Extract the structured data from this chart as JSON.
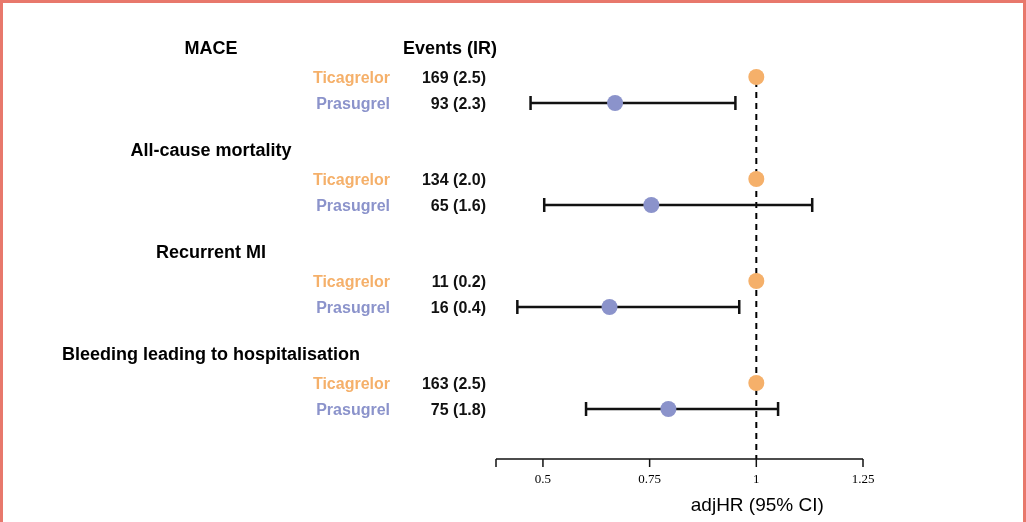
{
  "chart_data": {
    "type": "scatter",
    "orientation": "horizontal",
    "categories": [
      "Ticagrelor",
      "Prasugrel",
      "Ticagrelor",
      "Prasugrel",
      "Ticagrelor",
      "Prasugrel",
      "Ticagrelor",
      "Prasugrel"
    ],
    "values": [
      1,
      0.669,
      1,
      0.754,
      1,
      0.656,
      1,
      0.794
    ],
    "colors": [
      "#f5b06a",
      "#8b93cb",
      "#f5b06a",
      "#8b93cb",
      "#f5b06a",
      "#8b93cb",
      "#f5b06a",
      "#8b93cb"
    ],
    "errors": [
      null,
      [
        0.471,
        0.951
      ],
      null,
      [
        0.503,
        1.131
      ],
      null,
      [
        0.44,
        0.96
      ],
      null,
      [
        0.601,
        1.051
      ]
    ],
    "value_labels": [
      "169 (2.5)",
      "93 (2.3)",
      "134 (2.0)",
      "65 (1.6)",
      "11 (0.2)",
      "16 (0.4)",
      "163 (2.5)",
      "75 (1.8)"
    ],
    "annotations": [
      "Events (IR)",
      "MACE",
      "All-cause mortality",
      "Recurrent MI",
      "Bleeding leading to hospitalisation"
    ],
    "xlabel": "adjHR (95% CI)",
    "xlim": [
      0.39,
      1.25
    ],
    "xticks": [
      {
        "value": 0.39,
        "label": null
      },
      0.5,
      0.75,
      1,
      1.25
    ],
    "ref_lines": [
      {
        "axis": "x",
        "value": 1,
        "line_style": "dashed",
        "color": "#000000"
      }
    ],
    "marker": "circle",
    "grid": false
  }
}
